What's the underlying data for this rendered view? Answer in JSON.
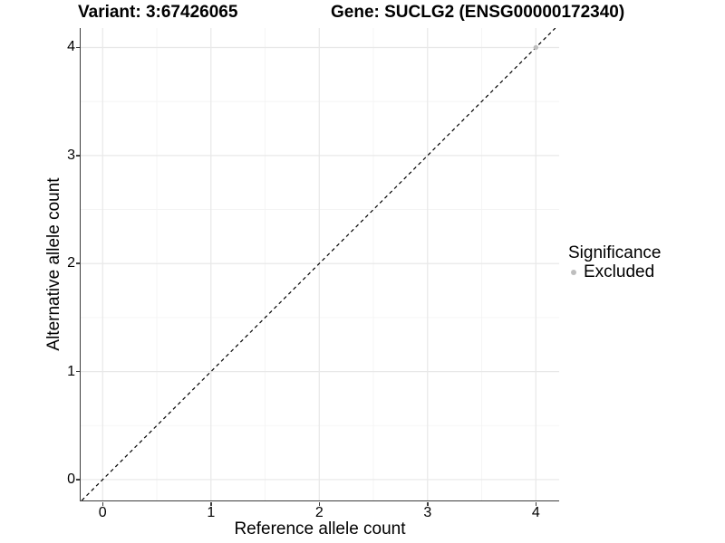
{
  "chart_data": {
    "type": "scatter",
    "title_left": "Variant: 3:67426065",
    "title_right": "Gene: SUCLG2 (ENSG00000172340)",
    "xlabel": "Reference allele count",
    "ylabel": "Alternative allele count",
    "xlim": [
      -0.203,
      4.215
    ],
    "ylim": [
      -0.193,
      4.18
    ],
    "x_ticks": [
      0,
      1,
      2,
      3,
      4
    ],
    "y_ticks": [
      0,
      1,
      2,
      3,
      4
    ],
    "x_minor_ticks": [
      0.5,
      1.5,
      2.5,
      3.5
    ],
    "y_minor_ticks": [
      0.5,
      1.5,
      2.5,
      3.5
    ],
    "grid": "major+minor",
    "identity_line": {
      "slope": 1,
      "intercept": 0,
      "style": "dashed"
    },
    "series": [
      {
        "name": "Excluded",
        "points": [
          {
            "x": 4,
            "y": 4
          }
        ]
      }
    ],
    "legend": {
      "title": "Significance",
      "position": "right",
      "entries": [
        {
          "label": "Excluded",
          "color": "#bebebe"
        }
      ]
    },
    "colors": {
      "point_excluded": "#bebebe",
      "grid_major": "#e8e8e8",
      "grid_minor": "#f3f3f3",
      "axis_line": "#3c3c3c",
      "identity_line": "#000000",
      "text": "#000000"
    }
  }
}
